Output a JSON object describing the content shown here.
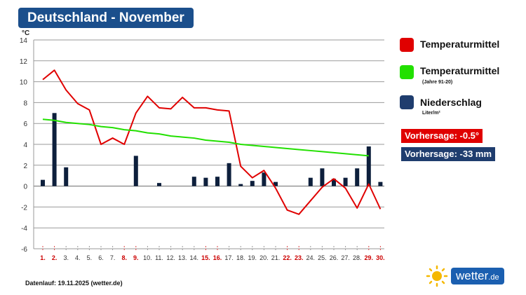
{
  "title": "Deutschland - November",
  "unit_label": "°C",
  "legend": {
    "temp_mean": {
      "label": "Temperaturmittel",
      "color": "#e00000"
    },
    "temp_clim": {
      "label": "Temperaturmittel",
      "sub": "(Jahre 91-20)",
      "color": "#22e000"
    },
    "precip": {
      "label": "Niederschlag",
      "sub": "Liter/m²",
      "color": "#1f3d6e"
    }
  },
  "forecast": {
    "temp": {
      "text": "Vorhersage: -0.5°",
      "color": "#e00000"
    },
    "precip": {
      "text": "Vorhersage: -33 mm",
      "color": "#1f3d6e"
    }
  },
  "footer": "Datenlauf: 19.11.2025 (wetter.de)",
  "logo": {
    "text": "wetter",
    "suffix": ".de"
  },
  "chart_data": {
    "type": "line",
    "ylim": [
      -6,
      14
    ],
    "yticks": [
      "14",
      "12",
      "10",
      "8",
      "6",
      "4",
      "2",
      "0",
      "-2",
      "-4",
      "-6"
    ],
    "ytick_values": [
      14,
      12,
      10,
      8,
      6,
      4,
      2,
      0,
      -2,
      -4,
      -6
    ],
    "categories": [
      "1.",
      "2.",
      "3.",
      "4.",
      "5.",
      "6.",
      "7.",
      "8.",
      "9.",
      "10.",
      "11.",
      "12.",
      "13.",
      "14.",
      "15.",
      "16.",
      "17.",
      "18.",
      "19.",
      "20.",
      "21.",
      "22.",
      "23.",
      "24.",
      "25.",
      "26.",
      "27.",
      "28.",
      "29.",
      "30."
    ],
    "weekend_days": [
      "1.",
      "2.",
      "8.",
      "9.",
      "15.",
      "16.",
      "22.",
      "23.",
      "29.",
      "30."
    ],
    "grid": true,
    "series": [
      {
        "name": "Temperaturmittel",
        "type": "line",
        "color": "#e00000",
        "values": [
          10.2,
          11.1,
          9.2,
          7.9,
          7.3,
          4.0,
          4.6,
          4.0,
          7.0,
          8.6,
          7.5,
          7.4,
          8.5,
          7.5,
          7.5,
          7.3,
          7.2,
          1.9,
          0.8,
          1.5,
          -0.2,
          -2.3,
          -2.7,
          -1.4,
          -0.1,
          0.7,
          -0.2,
          -2.1,
          0.2,
          -2.2
        ]
      },
      {
        "name": "Temperaturmittel (Jahre 91-20)",
        "type": "line",
        "color": "#22e000",
        "values": [
          6.4,
          6.3,
          6.1,
          6.0,
          5.9,
          5.7,
          5.6,
          5.4,
          5.3,
          5.1,
          5.0,
          4.8,
          4.7,
          4.6,
          4.4,
          4.3,
          4.2,
          4.0,
          3.9,
          3.8,
          3.7,
          3.6,
          3.5,
          3.4,
          3.3,
          3.2,
          3.1,
          3.0,
          2.9,
          null
        ]
      },
      {
        "name": "Niederschlag",
        "type": "bar",
        "color": "#0d1f3c",
        "values": [
          0.6,
          7.0,
          1.8,
          0,
          0,
          0,
          0,
          0,
          2.9,
          0,
          0.3,
          0,
          0,
          0.9,
          0.8,
          0.9,
          2.2,
          0.2,
          0.5,
          1.3,
          0.4,
          0,
          0,
          0.8,
          1.7,
          0.7,
          0.8,
          1.7,
          3.8,
          0.4
        ]
      }
    ]
  }
}
